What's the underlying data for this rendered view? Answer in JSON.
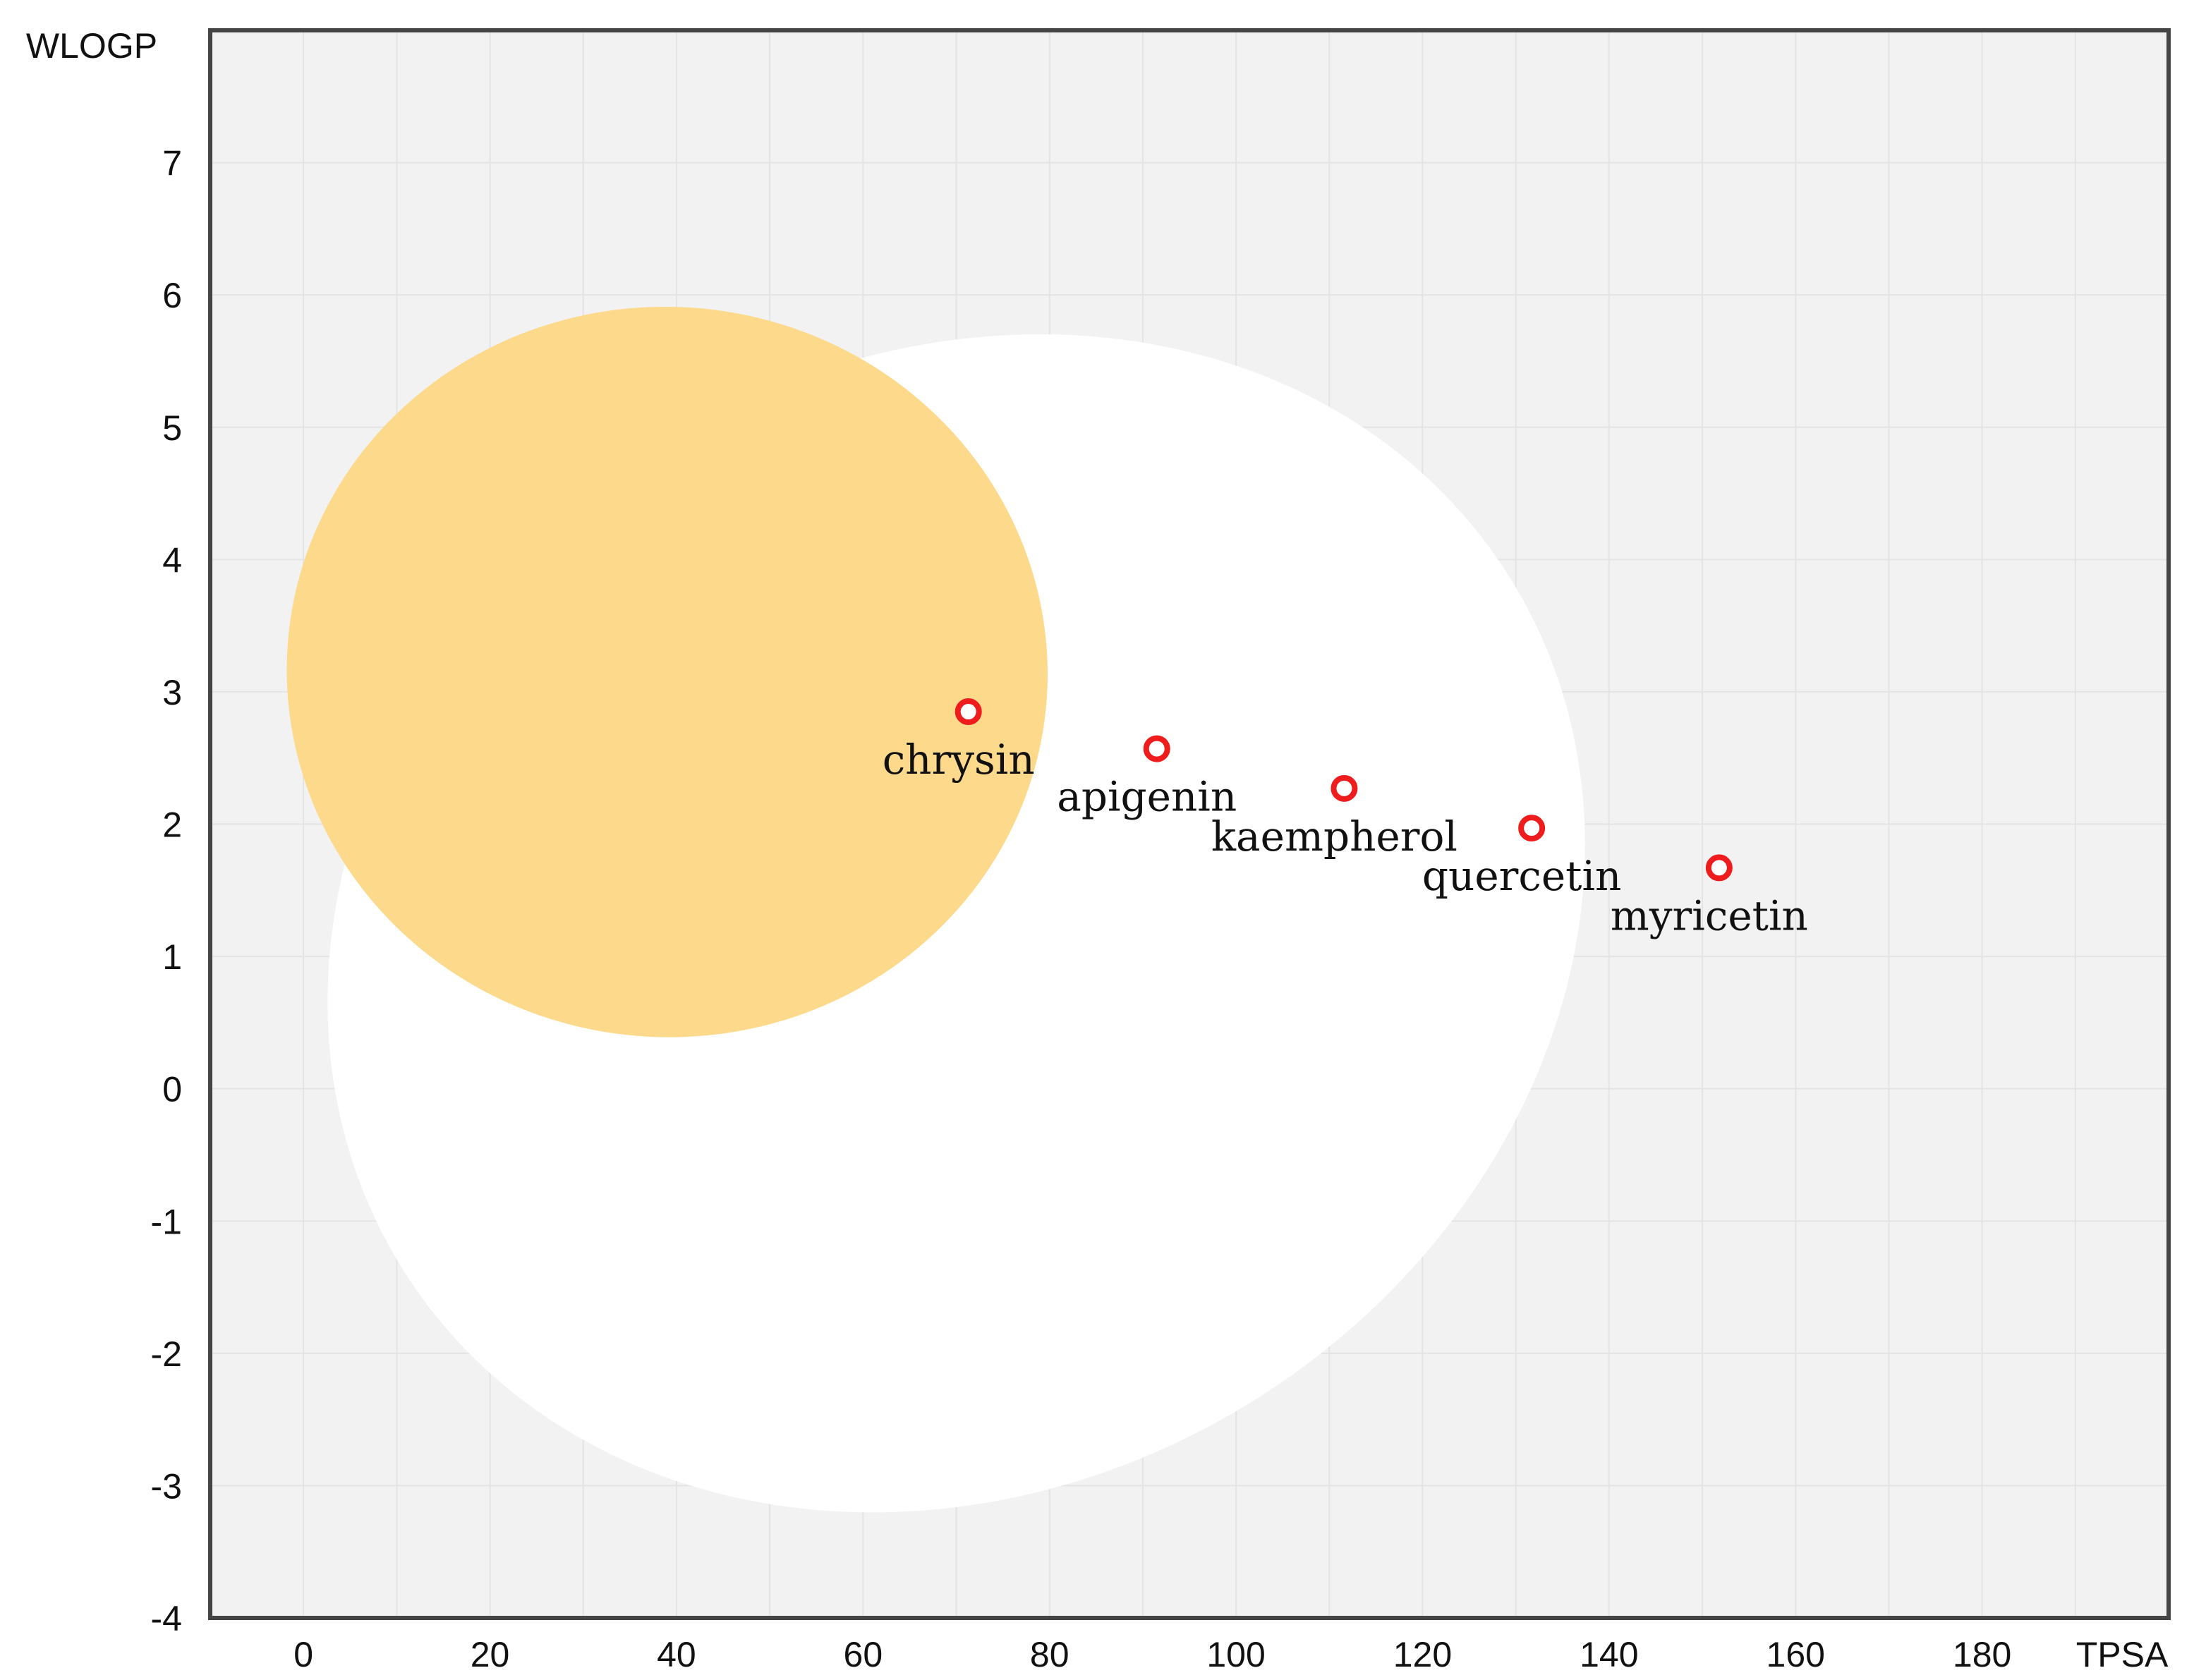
{
  "chart_data": {
    "type": "scatter",
    "title": "",
    "xlabel": "TPSA",
    "ylabel": "WLOGP",
    "xlim": [
      -10,
      200
    ],
    "ylim": [
      -4,
      8
    ],
    "x_ticks": [
      0,
      20,
      40,
      60,
      80,
      100,
      120,
      140,
      160,
      180
    ],
    "y_ticks": [
      -4,
      -3,
      -2,
      -1,
      0,
      1,
      2,
      3,
      4,
      5,
      6,
      7
    ],
    "grid": true,
    "colors": {
      "plot_background": "#f2f2f2",
      "grid": "#e4e4e4",
      "white_region": "#ffffff",
      "yolk_region": "#fdd98c",
      "point_stroke": "#ee1c1c",
      "frame": "#444444"
    },
    "regions": [
      {
        "name": "white",
        "shape": "ellipse",
        "center": [
          70,
          1.25
        ],
        "radii": [
          70,
          4.25
        ],
        "rotation_deg": -32
      },
      {
        "name": "yolk",
        "shape": "ellipse",
        "center": [
          39,
          3.15
        ],
        "radii": [
          40.8,
          2.76
        ],
        "rotation_deg": 4
      }
    ],
    "points": [
      {
        "label": "chrysin",
        "x": 71.3,
        "y": 2.85
      },
      {
        "label": "apigenin",
        "x": 91.5,
        "y": 2.57
      },
      {
        "label": "kaempherol",
        "x": 111.6,
        "y": 2.27
      },
      {
        "label": "quercetin",
        "x": 131.7,
        "y": 1.97
      },
      {
        "label": "myricetin",
        "x": 151.8,
        "y": 1.67
      }
    ]
  }
}
